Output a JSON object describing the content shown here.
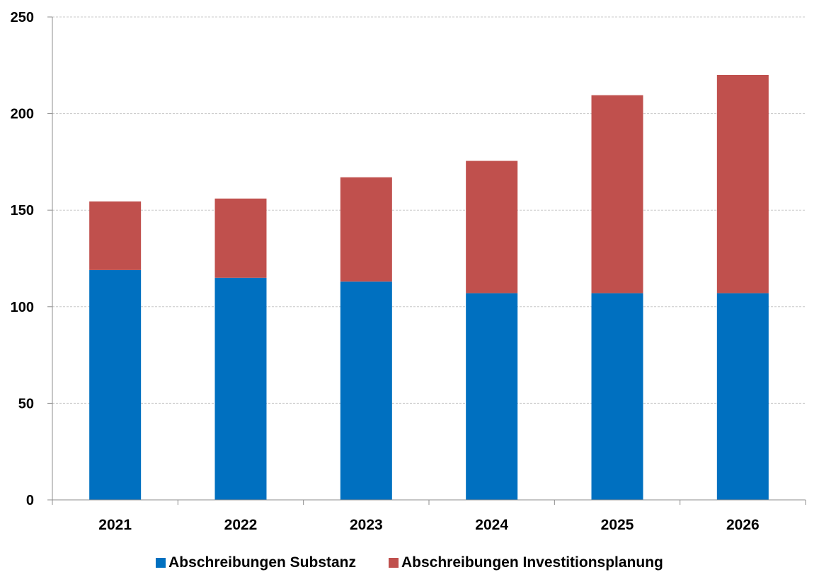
{
  "chart_data": {
    "type": "bar",
    "stacked": true,
    "categories": [
      "2021",
      "2022",
      "2023",
      "2024",
      "2025",
      "2026"
    ],
    "series": [
      {
        "name": "Abschreibungen Substanz",
        "color": "#0070C0",
        "values": [
          119,
          115,
          113,
          107,
          107,
          107
        ]
      },
      {
        "name": "Abschreibungen Investitionsplanung",
        "color": "#C0504D",
        "values": [
          35.5,
          41,
          54,
          68.5,
          102.5,
          113
        ]
      }
    ],
    "ylim": [
      0,
      250
    ],
    "yticks": [
      "0",
      "50",
      "100",
      "150",
      "200",
      "250"
    ],
    "grid": true,
    "legend_position": "bottom"
  }
}
